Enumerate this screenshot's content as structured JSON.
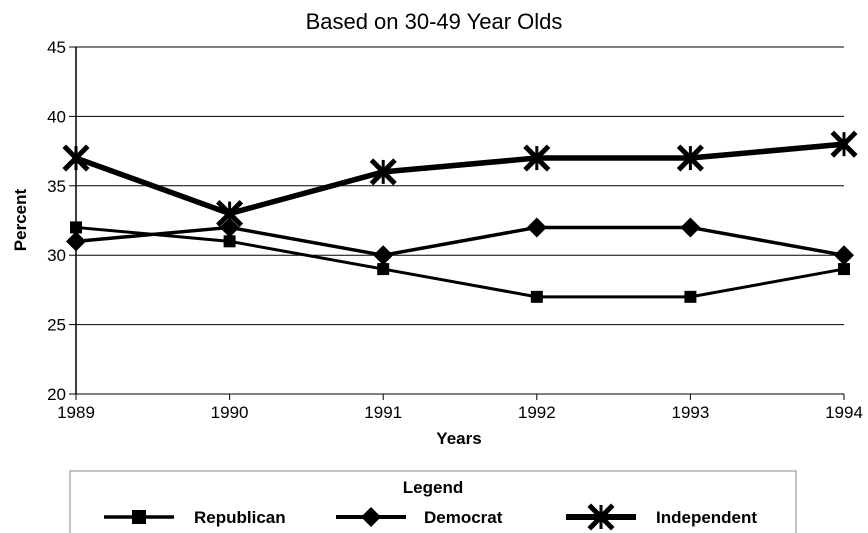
{
  "chart_data": {
    "type": "line",
    "title": "Based on 30-49 Year Olds",
    "xlabel": "Years",
    "ylabel": "Percent",
    "categories": [
      "1989",
      "1990",
      "1991",
      "1992",
      "1993",
      "1994"
    ],
    "ylim": [
      20,
      45
    ],
    "yticks": [
      20,
      25,
      30,
      35,
      40,
      45
    ],
    "grid": true,
    "legend_title": "Legend",
    "legend_position": "bottom",
    "series": [
      {
        "name": "Republican",
        "marker": "square",
        "values": [
          32,
          31,
          29,
          27,
          27,
          29
        ]
      },
      {
        "name": "Democrat",
        "marker": "diamond",
        "values": [
          31,
          32,
          30,
          32,
          32,
          30
        ]
      },
      {
        "name": "Independent",
        "marker": "x",
        "values": [
          37,
          33,
          36,
          37,
          37,
          38
        ]
      }
    ]
  }
}
